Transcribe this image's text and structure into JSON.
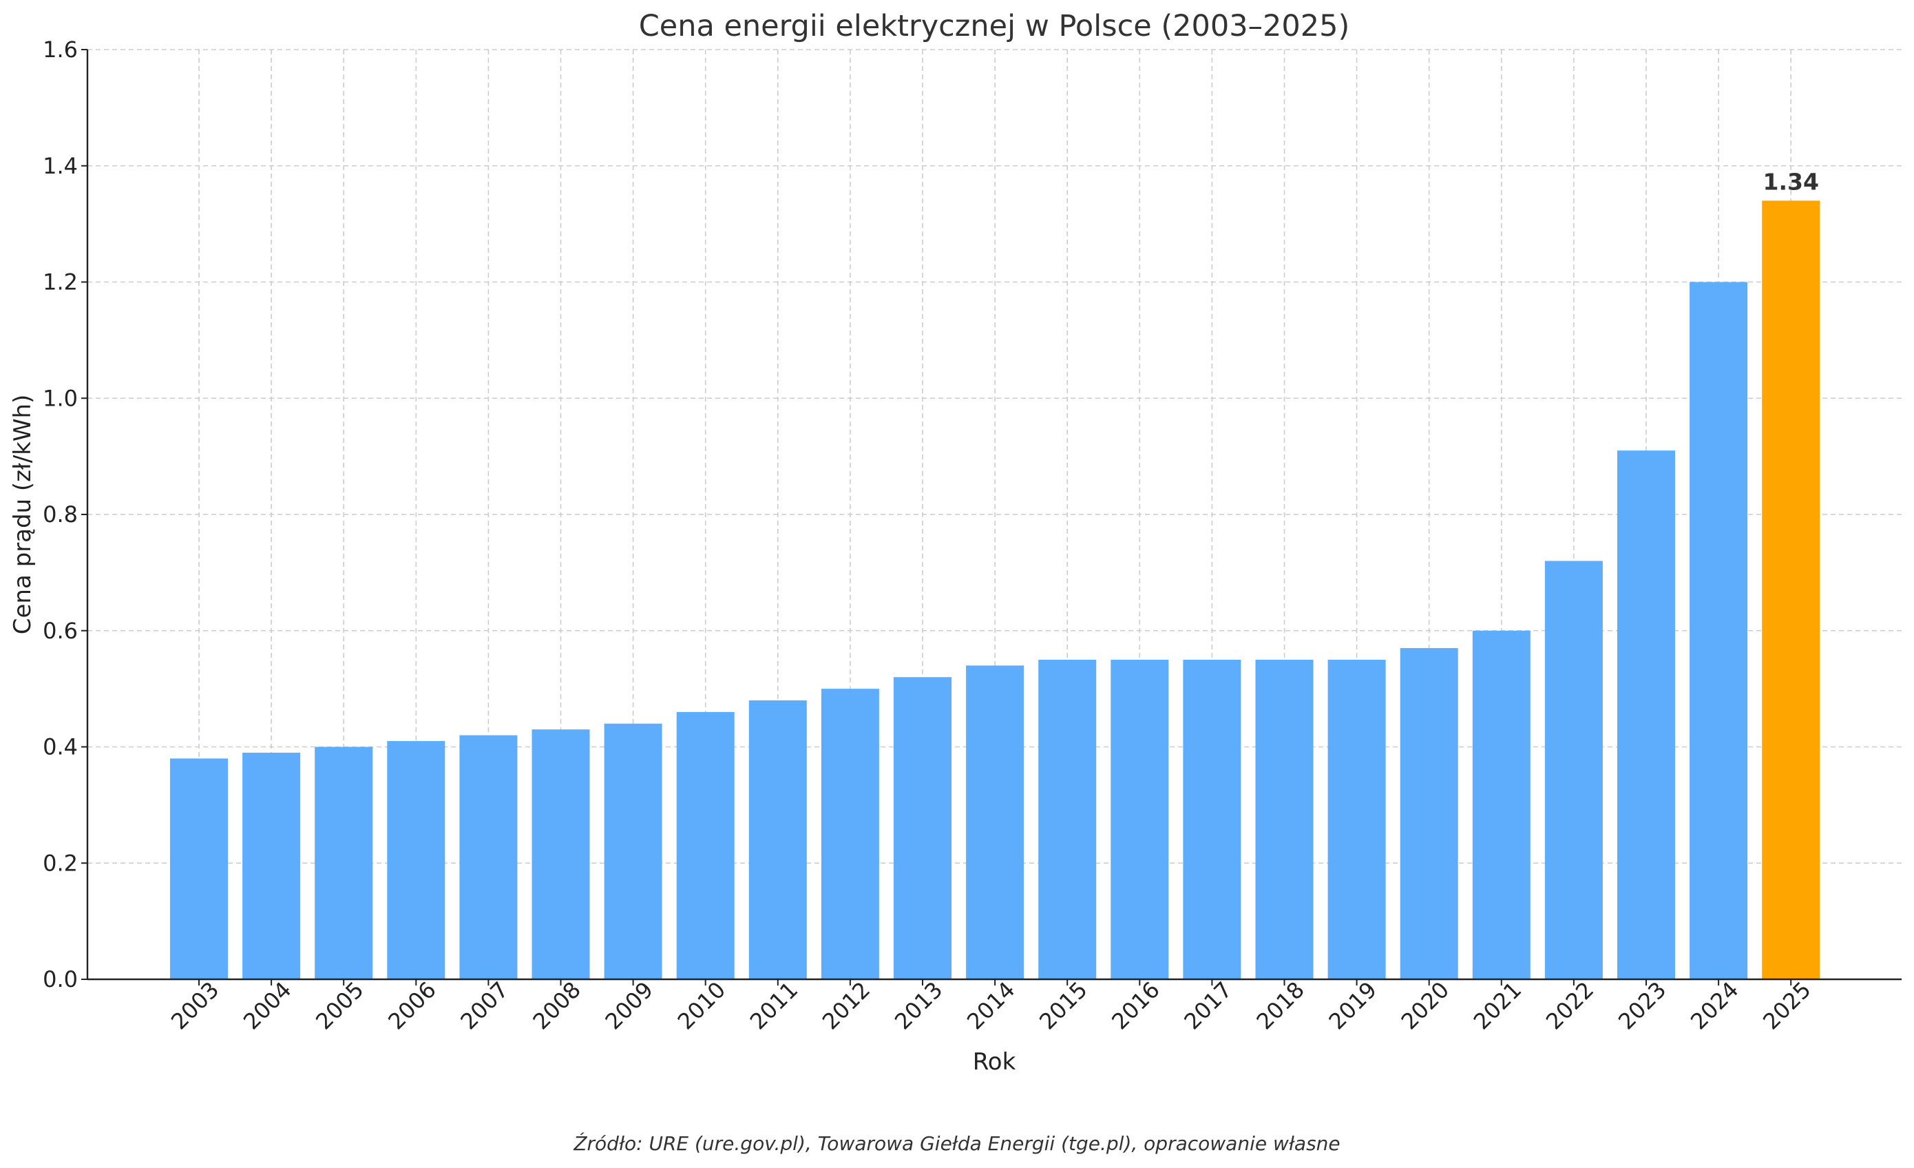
{
  "chart_data": {
    "type": "bar",
    "title": "Cena energii elektrycznej w Polsce (2003–2025)",
    "xlabel": "Rok",
    "ylabel": "Cena prądu (zł/kWh)",
    "categories": [
      "2003",
      "2004",
      "2005",
      "2006",
      "2007",
      "2008",
      "2009",
      "2010",
      "2011",
      "2012",
      "2013",
      "2014",
      "2015",
      "2016",
      "2017",
      "2018",
      "2019",
      "2020",
      "2021",
      "2022",
      "2023",
      "2024",
      "2025"
    ],
    "values": [
      0.38,
      0.39,
      0.4,
      0.41,
      0.42,
      0.43,
      0.44,
      0.46,
      0.48,
      0.5,
      0.52,
      0.54,
      0.55,
      0.55,
      0.55,
      0.55,
      0.55,
      0.57,
      0.6,
      0.72,
      0.91,
      1.2,
      1.34
    ],
    "ylim": [
      0,
      1.6
    ],
    "yticks": [
      "0.0",
      "0.2",
      "0.4",
      "0.6",
      "0.8",
      "1.0",
      "1.2",
      "1.4",
      "1.6"
    ],
    "grid": true,
    "colors": {
      "default_bar": "#5DADFC",
      "highlight_bar": "#FFA500"
    },
    "highlight_category": "2025",
    "annotations": [
      {
        "category": "2025",
        "text": "1.34"
      }
    ],
    "source": "Źródło: URE (ure.gov.pl), Towarowa Giełda Energii (tge.pl), opracowanie własne"
  }
}
